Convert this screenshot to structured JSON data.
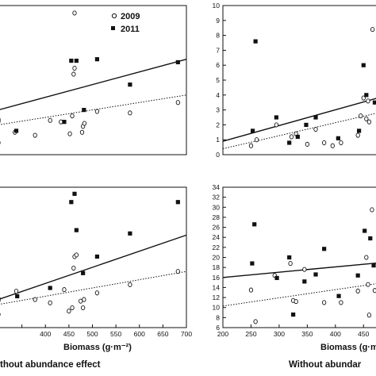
{
  "legend": {
    "year_open": "2009",
    "year_filled": "2011"
  },
  "captions": {
    "left": "thout abundance effect",
    "right": "Without abundar"
  },
  "chart_data": [
    {
      "type": "scatter",
      "panel": "top-left",
      "xlabel": "",
      "xlim": [
        300,
        700
      ],
      "x_ticks": [],
      "y_ticks": [],
      "grid": false,
      "legend_placement": "top-right",
      "series": [
        {
          "name": "2009",
          "marker": "open-circle",
          "x": [
            300,
            335,
            378,
            410,
            433,
            452,
            457,
            460,
            462,
            462,
            478,
            480,
            483,
            510,
            580,
            682
          ],
          "y": [
            8,
            15,
            13,
            23,
            22,
            14,
            26,
            54,
            58,
            95,
            15,
            19,
            21,
            29,
            28,
            35
          ]
        },
        {
          "name": "2011",
          "marker": "filled-square",
          "x": [
            300,
            338,
            440,
            455,
            466,
            482,
            510,
            580,
            682
          ],
          "y": [
            23,
            16,
            22,
            63,
            63,
            30,
            64,
            47,
            62
          ]
        }
      ],
      "trend_lines": [
        {
          "series": "2009",
          "style": "dotted",
          "points": [
            [
              300,
              20
            ],
            [
              700,
              40
            ]
          ]
        },
        {
          "series": "2011",
          "style": "solid",
          "points": [
            [
              300,
              30
            ],
            [
              700,
              64
            ]
          ]
        }
      ]
    },
    {
      "type": "scatter",
      "panel": "top-right",
      "xlim": [
        200,
        475
      ],
      "ylim": [
        0,
        10
      ],
      "y_ticks": [
        0,
        1,
        2,
        3,
        4,
        5,
        6,
        7,
        8,
        9,
        10
      ],
      "grid": false,
      "series": [
        {
          "name": "2009",
          "marker": "open-circle",
          "x": [
            250,
            260,
            295,
            322,
            330,
            350,
            365,
            380,
            395,
            410,
            440,
            445,
            450,
            455,
            458,
            460,
            466
          ],
          "y": [
            0.6,
            1.0,
            2.0,
            1.2,
            1.4,
            0.7,
            1.7,
            0.8,
            0.6,
            0.8,
            1.3,
            2.6,
            3.8,
            2.4,
            3.6,
            2.2,
            8.4
          ]
        },
        {
          "name": "2011",
          "marker": "filled-square",
          "x": [
            253,
            258,
            295,
            318,
            333,
            348,
            365,
            405,
            442,
            450,
            455,
            470
          ],
          "y": [
            1.6,
            7.6,
            2.5,
            0.8,
            1.2,
            2.0,
            2.5,
            1.1,
            1.6,
            6.0,
            4.0,
            3.5
          ]
        }
      ],
      "trend_lines": [
        {
          "series": "2009",
          "style": "dotted",
          "points": [
            [
              200,
              0.4
            ],
            [
              475,
              2.8
            ]
          ]
        },
        {
          "series": "2011",
          "style": "solid",
          "points": [
            [
              200,
              0.9
            ],
            [
              475,
              3.8
            ]
          ]
        }
      ]
    },
    {
      "type": "scatter",
      "panel": "bottom-left",
      "xlabel": "Biomass (g·m⁻²)",
      "xlim": [
        300,
        700
      ],
      "x_ticks": [
        300,
        350,
        400,
        450,
        500,
        550,
        600,
        650,
        700
      ],
      "x_tick_labels": [
        "",
        "",
        "400",
        "450",
        "500",
        "550",
        "600",
        "650",
        "700"
      ],
      "grid": false,
      "series": [
        {
          "name": "2009",
          "marker": "open-circle",
          "x": [
            300,
            338,
            378,
            410,
            440,
            450,
            457,
            460,
            462,
            466,
            475,
            480,
            482,
            510,
            580,
            682
          ],
          "y": [
            8,
            22,
            17,
            15,
            23,
            10,
            12,
            36,
            43,
            44,
            16,
            12,
            17,
            21,
            26,
            34
          ]
        },
        {
          "name": "2011",
          "marker": "filled-square",
          "x": [
            300,
            340,
            410,
            455,
            462,
            466,
            480,
            510,
            580,
            682
          ],
          "y": [
            17,
            19,
            24,
            76,
            81,
            59,
            33,
            43,
            57,
            76
          ]
        }
      ],
      "trend_lines": [
        {
          "series": "2009",
          "style": "dotted",
          "points": [
            [
              300,
              14
            ],
            [
              700,
              34
            ]
          ]
        },
        {
          "series": "2011",
          "style": "solid",
          "points": [
            [
              300,
              17
            ],
            [
              700,
              56
            ]
          ]
        }
      ]
    },
    {
      "type": "scatter",
      "panel": "bottom-right",
      "xlabel": "Biomass (g·m",
      "xlim": [
        200,
        475
      ],
      "ylim": [
        6,
        34
      ],
      "x_ticks": [
        200,
        250,
        300,
        350,
        400,
        450
      ],
      "y_ticks": [
        6,
        8,
        10,
        12,
        14,
        16,
        18,
        20,
        22,
        24,
        26,
        28,
        30,
        32,
        34
      ],
      "grid": false,
      "series": [
        {
          "name": "2009",
          "marker": "open-circle",
          "x": [
            250,
            258,
            292,
            320,
            325,
            330,
            345,
            380,
            410,
            440,
            455,
            458,
            460,
            465,
            470
          ],
          "y": [
            13.5,
            7.2,
            16.4,
            18.8,
            11.4,
            11.2,
            17.6,
            11.0,
            11.0,
            13.3,
            20.0,
            14.6,
            8.5,
            29.5,
            13.4
          ]
        },
        {
          "name": "2011",
          "marker": "filled-square",
          "x": [
            252,
            256,
            296,
            318,
            325,
            345,
            365,
            380,
            406,
            440,
            452,
            462,
            468
          ],
          "y": [
            18.8,
            26.6,
            15.9,
            20.0,
            8.6,
            15.2,
            16.6,
            21.7,
            12.3,
            16.4,
            25.3,
            23.8,
            18.4
          ]
        }
      ],
      "trend_lines": [
        {
          "series": "2009",
          "style": "dotted",
          "points": [
            [
              200,
              10.3
            ],
            [
              475,
              14.8
            ]
          ]
        },
        {
          "series": "2011",
          "style": "solid",
          "points": [
            [
              200,
              16.0
            ],
            [
              475,
              18.9
            ]
          ]
        }
      ]
    }
  ]
}
